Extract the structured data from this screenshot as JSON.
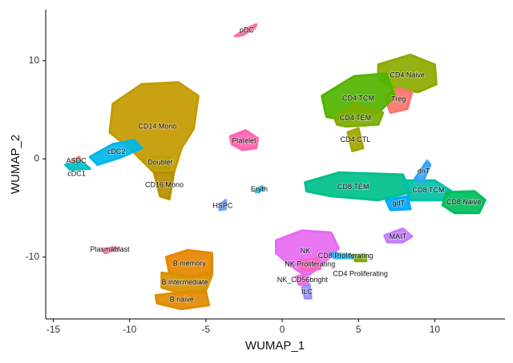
{
  "chart_data": {
    "type": "scatter",
    "x_label": "WUMAP_1",
    "y_label": "WUMAP_2",
    "xlim": [
      -15.5,
      14.6
    ],
    "ylim": [
      -16.3,
      15.2
    ],
    "xticks": [
      -15,
      -10,
      -5,
      0,
      5,
      10
    ],
    "yticks": [
      -10,
      0,
      10
    ],
    "grid": false,
    "series": [
      {
        "name": "CD14 Mono",
        "color": "#c49a00",
        "x": [
          -11.1,
          -9.2,
          -6.8,
          -5.5,
          -5.8,
          -6.6,
          -7.1,
          -8.4,
          -10.0,
          -11.3
        ],
        "y": [
          5.6,
          7.6,
          7.8,
          6.4,
          3.1,
          1.1,
          -1.4,
          -1.4,
          1.1,
          2.7
        ]
      },
      {
        "name": "CD16 Mono",
        "color": "#b58f00",
        "x": [
          -8.4,
          -7.1,
          -7.4,
          -8.0
        ],
        "y": [
          -1.4,
          -1.4,
          -4.1,
          -3.8
        ]
      },
      {
        "name": "Doublet",
        "color": "#b8a000",
        "x": [
          -8.7,
          -7.4,
          -7.4,
          -8.5
        ],
        "y": [
          0.2,
          0.2,
          -1.0,
          -1.0
        ]
      },
      {
        "name": "cDC2",
        "color": "#00b6eb",
        "x": [
          -12.6,
          -11.1,
          -9.7,
          -9.2,
          -10.5,
          -12.1
        ],
        "y": [
          0.2,
          1.5,
          1.9,
          1.1,
          0.2,
          -0.6
        ]
      },
      {
        "name": "ASDC",
        "color": "#f8766d",
        "x": [
          -13.8,
          -13.3,
          -13.2,
          -13.7
        ],
        "y": [
          -0.2,
          0.2,
          -0.3,
          -0.6
        ]
      },
      {
        "name": "cDC1",
        "color": "#00bfc4",
        "x": [
          -14.2,
          -13.2,
          -12.6,
          -13.9
        ],
        "y": [
          -0.6,
          -0.2,
          -1.0,
          -1.1
        ]
      },
      {
        "name": "pDC",
        "color": "#ff6ea0",
        "x": [
          -3.1,
          -2.4,
          -1.7,
          -1.8,
          -2.6
        ],
        "y": [
          12.5,
          13.2,
          13.7,
          13.3,
          12.6
        ]
      },
      {
        "name": "Platelet",
        "color": "#ff64b0",
        "x": [
          -3.4,
          -2.4,
          -1.6,
          -1.7,
          -2.6,
          -3.3
        ],
        "y": [
          2.3,
          2.9,
          2.1,
          1.1,
          0.9,
          1.5
        ]
      },
      {
        "name": "HSPC",
        "color": "#619cff",
        "x": [
          -4.1,
          -3.7,
          -3.7,
          -4.1
        ],
        "y": [
          -4.7,
          -4.2,
          -5.1,
          -5.2
        ]
      },
      {
        "name": "Eryth",
        "color": "#00b4f0",
        "x": [
          -1.8,
          -1.3,
          -1.2,
          -1.7
        ],
        "y": [
          -3.2,
          -2.8,
          -3.1,
          -3.4
        ]
      },
      {
        "name": "CD4 Naive",
        "color": "#8cab00",
        "x": [
          6.3,
          8.4,
          10.0,
          10.1,
          8.9,
          7.4,
          6.3
        ],
        "y": [
          9.6,
          10.6,
          9.6,
          7.6,
          6.8,
          7.2,
          8.0
        ]
      },
      {
        "name": "Treg",
        "color": "#f8766d",
        "x": [
          6.7,
          7.6,
          8.5,
          8.2,
          7.1
        ],
        "y": [
          6.4,
          7.2,
          6.8,
          5.1,
          4.7
        ]
      },
      {
        "name": "CD4 TCM",
        "color": "#53b400",
        "x": [
          2.6,
          4.7,
          6.8,
          7.4,
          6.3,
          4.2,
          2.9
        ],
        "y": [
          6.4,
          8.4,
          8.7,
          6.4,
          4.7,
          3.9,
          4.3
        ]
      },
      {
        "name": "CD4 TEM",
        "color": "#7cae00",
        "x": [
          3.4,
          4.7,
          6.6,
          6.3,
          4.2,
          3.6
        ],
        "y": [
          4.3,
          5.6,
          4.7,
          3.5,
          3.3,
          3.5
        ]
      },
      {
        "name": "CD4 CTL",
        "color": "#a3a500",
        "x": [
          4.3,
          5.0,
          5.3,
          4.6
        ],
        "y": [
          2.7,
          3.1,
          1.1,
          0.8
        ]
      },
      {
        "name": "CD8 TEM",
        "color": "#00c08b",
        "x": [
          1.5,
          3.7,
          7.9,
          8.4,
          6.3,
          3.2,
          1.6
        ],
        "y": [
          -2.4,
          -1.4,
          -1.6,
          -3.4,
          -4.2,
          -3.8,
          -3.3
        ]
      },
      {
        "name": "CD8 TCM",
        "color": "#00c1a7",
        "x": [
          7.9,
          10.0,
          11.1,
          10.5,
          8.4
        ],
        "y": [
          -2.2,
          -2.2,
          -3.3,
          -4.2,
          -4.2
        ]
      },
      {
        "name": "CD8 Naive",
        "color": "#00bd5c",
        "x": [
          10.8,
          12.6,
          13.3,
          12.9,
          11.3,
          10.5
        ],
        "y": [
          -3.4,
          -3.3,
          -4.2,
          -5.5,
          -5.5,
          -4.7
        ]
      },
      {
        "name": "gdT",
        "color": "#00a9ff",
        "x": [
          6.8,
          8.2,
          8.4,
          7.1
        ],
        "y": [
          -4.2,
          -3.8,
          -5.1,
          -5.2
        ]
      },
      {
        "name": "dnT",
        "color": "#35a2ff",
        "x": [
          8.7,
          9.5,
          9.7,
          9.2
        ],
        "y": [
          -2.0,
          -0.2,
          -0.6,
          -2.4
        ]
      },
      {
        "name": "MAIT",
        "color": "#c77cff",
        "x": [
          6.7,
          7.9,
          8.5,
          7.9,
          6.9
        ],
        "y": [
          -7.8,
          -7.1,
          -7.9,
          -8.5,
          -8.5
        ]
      },
      {
        "name": "NK",
        "color": "#e76bf3",
        "x": [
          -0.4,
          1.3,
          3.2,
          3.7,
          2.6,
          1.6,
          0.5,
          -0.4
        ],
        "y": [
          -8.3,
          -7.3,
          -7.5,
          -9.1,
          -10.8,
          -12.0,
          -10.8,
          -9.6
        ]
      },
      {
        "name": "NK Proliferating",
        "color": "#ff61c3",
        "x": [
          1.1,
          2.4,
          2.5,
          1.3
        ],
        "y": [
          -10.4,
          -10.1,
          -11.2,
          -11.4
        ]
      },
      {
        "name": "CD8 Proliferating",
        "color": "#00b0f6",
        "x": [
          3.2,
          4.7,
          5.3,
          3.4
        ],
        "y": [
          -9.6,
          -9.8,
          -10.1,
          -10.1
        ]
      },
      {
        "name": "CD4 Proliferating",
        "color": "#7cae00",
        "x": [
          4.7,
          5.5,
          5.5,
          4.8
        ],
        "y": [
          -9.8,
          -9.8,
          -10.4,
          -10.4
        ]
      },
      {
        "name": "NK_CD56bright",
        "color": "#f564e3",
        "x": [
          0.9,
          1.6,
          1.7,
          1.1
        ],
        "y": [
          -12.0,
          -11.8,
          -12.8,
          -12.8
        ]
      },
      {
        "name": "ILC",
        "color": "#9590ff",
        "x": [
          1.3,
          1.8,
          1.9,
          1.5
        ],
        "y": [
          -13.1,
          -12.8,
          -14.2,
          -14.2
        ]
      },
      {
        "name": "Plasmablast",
        "color": "#ff67a4",
        "x": [
          -11.8,
          -11.1,
          -10.7,
          -11.6
        ],
        "y": [
          -9.3,
          -9.0,
          -9.1,
          -9.6
        ]
      },
      {
        "name": "B memory",
        "color": "#e58700",
        "x": [
          -7.6,
          -6.2,
          -4.6,
          -4.6,
          -6.1,
          -7.4
        ],
        "y": [
          -10.0,
          -9.3,
          -9.6,
          -11.6,
          -12.0,
          -11.6
        ]
      },
      {
        "name": "B intermediate",
        "color": "#d89000",
        "x": [
          -7.9,
          -6.1,
          -4.6,
          -5.0,
          -6.8,
          -7.9
        ],
        "y": [
          -11.6,
          -12.0,
          -11.8,
          -13.4,
          -13.6,
          -13.1
        ]
      },
      {
        "name": "B naive",
        "color": "#e08b00",
        "x": [
          -8.3,
          -6.6,
          -5.0,
          -4.8,
          -6.6,
          -8.2
        ],
        "y": [
          -13.9,
          -13.6,
          -13.6,
          -14.9,
          -15.3,
          -14.7
        ]
      }
    ]
  }
}
